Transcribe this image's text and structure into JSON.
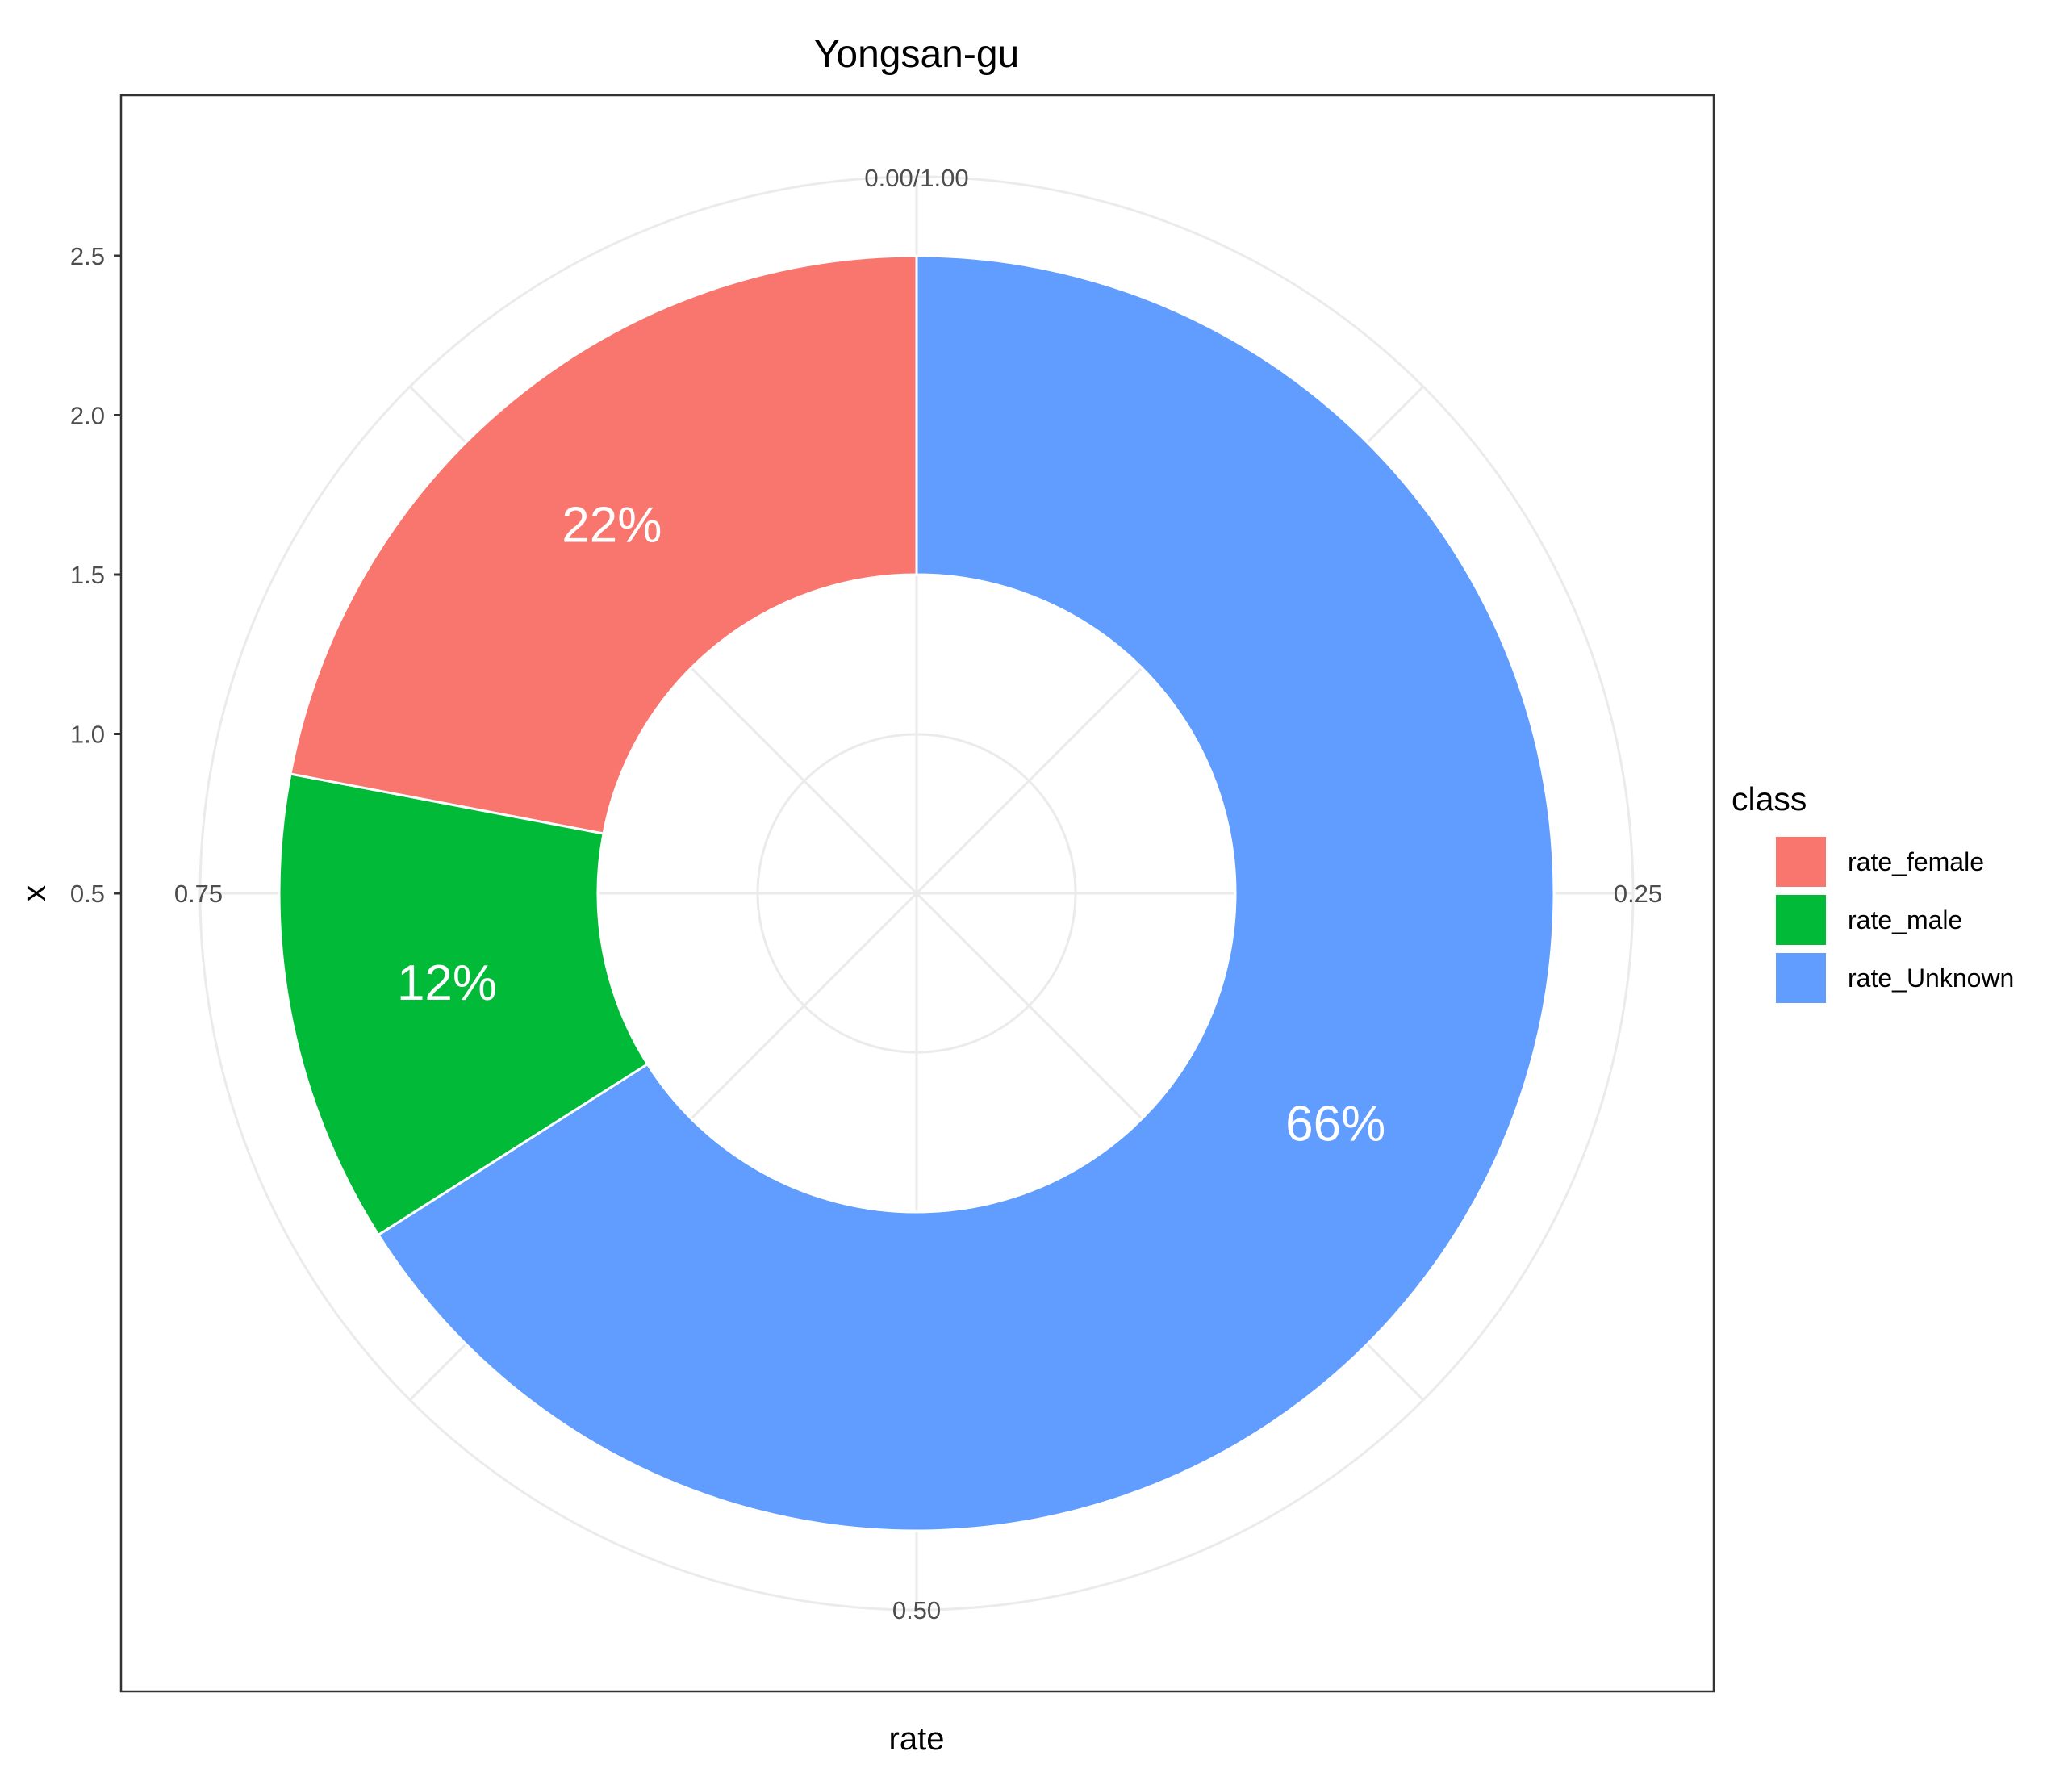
{
  "chart_data": {
    "type": "pie",
    "variant": "donut (polar bar chart)",
    "title": "Yongsan-gu",
    "xlabel": "rate",
    "ylabel": "x",
    "theta_ticks": [
      "0.00/1.00",
      "0.25",
      "0.50",
      "0.75"
    ],
    "y_ticks": [
      "0.5",
      "1.0",
      "1.5",
      "2.0",
      "2.5"
    ],
    "grid": true,
    "legend": {
      "title": "class",
      "position": "right"
    },
    "slices": [
      {
        "name": "rate_Unknown",
        "value": 0.66,
        "label": "66%",
        "color": "#619CFF"
      },
      {
        "name": "rate_male",
        "value": 0.12,
        "label": "12%",
        "color": "#00BA38"
      },
      {
        "name": "rate_female",
        "value": 0.22,
        "label": "22%",
        "color": "#F8766D"
      }
    ],
    "legend_order": [
      "rate_female",
      "rate_male",
      "rate_Unknown"
    ]
  }
}
